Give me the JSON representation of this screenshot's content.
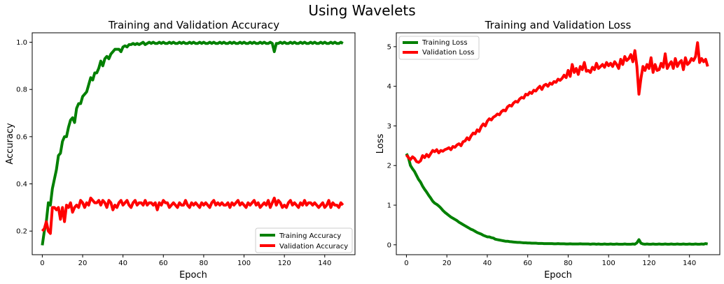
{
  "figure": {
    "suptitle": "Using Wavelets"
  },
  "chart_data": [
    {
      "type": "line",
      "title": "Training and Validation Accuracy",
      "xlabel": "Epoch",
      "ylabel": "Accuracy",
      "xlim": [
        -5,
        155
      ],
      "ylim": [
        0.1,
        1.04
      ],
      "xticks": [
        0,
        20,
        40,
        60,
        80,
        100,
        120,
        140
      ],
      "yticks": [
        0.2,
        0.4,
        0.6,
        0.8,
        1.0
      ],
      "ytick_labels": [
        "0.2",
        "0.4",
        "0.6",
        "0.8",
        "1.0"
      ],
      "grid": false,
      "legend": "lower-right",
      "x": [
        0,
        1,
        2,
        3,
        4,
        5,
        6,
        7,
        8,
        9,
        10,
        11,
        12,
        13,
        14,
        15,
        16,
        17,
        18,
        19,
        20,
        21,
        22,
        23,
        24,
        25,
        26,
        27,
        28,
        29,
        30,
        31,
        32,
        33,
        34,
        35,
        36,
        37,
        38,
        39,
        40,
        41,
        42,
        43,
        44,
        45,
        46,
        47,
        48,
        49,
        50,
        51,
        52,
        53,
        54,
        55,
        56,
        57,
        58,
        59,
        60,
        61,
        62,
        63,
        64,
        65,
        66,
        67,
        68,
        69,
        70,
        71,
        72,
        73,
        74,
        75,
        76,
        77,
        78,
        79,
        80,
        81,
        82,
        83,
        84,
        85,
        86,
        87,
        88,
        89,
        90,
        91,
        92,
        93,
        94,
        95,
        96,
        97,
        98,
        99,
        100,
        101,
        102,
        103,
        104,
        105,
        106,
        107,
        108,
        109,
        110,
        111,
        112,
        113,
        114,
        115,
        116,
        117,
        118,
        119,
        120,
        121,
        122,
        123,
        124,
        125,
        126,
        127,
        128,
        129,
        130,
        131,
        132,
        133,
        134,
        135,
        136,
        137,
        138,
        139,
        140,
        141,
        142,
        143,
        144,
        145,
        146,
        147,
        148,
        149
      ],
      "series": [
        {
          "name": "Training Accuracy",
          "color": "#008000",
          "values": [
            0.14,
            0.2,
            0.24,
            0.32,
            0.31,
            0.38,
            0.42,
            0.46,
            0.52,
            0.53,
            0.58,
            0.6,
            0.6,
            0.64,
            0.67,
            0.68,
            0.66,
            0.72,
            0.74,
            0.74,
            0.77,
            0.78,
            0.79,
            0.82,
            0.85,
            0.84,
            0.87,
            0.87,
            0.89,
            0.92,
            0.9,
            0.93,
            0.94,
            0.93,
            0.95,
            0.96,
            0.97,
            0.97,
            0.97,
            0.96,
            0.98,
            0.985,
            0.98,
            0.99,
            0.99,
            0.995,
            0.99,
            0.995,
            0.99,
            0.995,
            1.0,
            0.99,
            0.995,
            1.0,
            0.995,
            1.0,
            0.995,
            0.995,
            1.0,
            0.995,
            1.0,
            0.995,
            0.995,
            1.0,
            0.995,
            1.0,
            0.995,
            0.995,
            1.0,
            0.995,
            1.0,
            0.995,
            0.995,
            1.0,
            0.995,
            1.0,
            0.995,
            0.995,
            1.0,
            0.995,
            1.0,
            0.995,
            0.995,
            1.0,
            0.995,
            1.0,
            0.995,
            0.995,
            1.0,
            0.995,
            1.0,
            0.995,
            0.995,
            1.0,
            0.995,
            1.0,
            0.995,
            0.995,
            1.0,
            0.995,
            1.0,
            0.995,
            0.995,
            1.0,
            0.995,
            1.0,
            0.995,
            0.995,
            1.0,
            0.995,
            1.0,
            0.995,
            0.995,
            1.0,
            0.995,
            0.96,
            0.995,
            0.995,
            1.0,
            0.995,
            1.0,
            0.995,
            0.995,
            1.0,
            0.995,
            1.0,
            0.995,
            0.995,
            1.0,
            0.995,
            1.0,
            0.995,
            0.995,
            1.0,
            0.995,
            1.0,
            0.995,
            0.995,
            1.0,
            0.995,
            1.0,
            0.995,
            0.995,
            1.0,
            0.995,
            1.0,
            0.995,
            0.995,
            1.0,
            0.995
          ]
        },
        {
          "name": "Validation Accuracy",
          "color": "#ff0000",
          "values": [
            0.2,
            0.21,
            0.24,
            0.2,
            0.19,
            0.3,
            0.3,
            0.29,
            0.3,
            0.25,
            0.3,
            0.24,
            0.31,
            0.3,
            0.32,
            0.28,
            0.3,
            0.31,
            0.3,
            0.33,
            0.32,
            0.3,
            0.32,
            0.31,
            0.34,
            0.33,
            0.32,
            0.32,
            0.33,
            0.31,
            0.33,
            0.32,
            0.3,
            0.33,
            0.32,
            0.29,
            0.31,
            0.3,
            0.32,
            0.33,
            0.31,
            0.32,
            0.33,
            0.31,
            0.3,
            0.32,
            0.33,
            0.31,
            0.32,
            0.32,
            0.31,
            0.33,
            0.31,
            0.32,
            0.32,
            0.31,
            0.32,
            0.29,
            0.32,
            0.31,
            0.33,
            0.32,
            0.32,
            0.3,
            0.31,
            0.32,
            0.31,
            0.3,
            0.32,
            0.31,
            0.31,
            0.33,
            0.31,
            0.3,
            0.32,
            0.31,
            0.32,
            0.31,
            0.3,
            0.32,
            0.31,
            0.32,
            0.31,
            0.3,
            0.32,
            0.33,
            0.31,
            0.32,
            0.31,
            0.32,
            0.31,
            0.31,
            0.32,
            0.3,
            0.32,
            0.31,
            0.32,
            0.33,
            0.31,
            0.32,
            0.31,
            0.3,
            0.32,
            0.31,
            0.32,
            0.33,
            0.31,
            0.32,
            0.3,
            0.31,
            0.32,
            0.31,
            0.33,
            0.3,
            0.32,
            0.34,
            0.31,
            0.33,
            0.32,
            0.3,
            0.31,
            0.3,
            0.32,
            0.33,
            0.31,
            0.32,
            0.31,
            0.3,
            0.32,
            0.31,
            0.33,
            0.31,
            0.32,
            0.32,
            0.31,
            0.32,
            0.31,
            0.3,
            0.31,
            0.32,
            0.3,
            0.31,
            0.33,
            0.3,
            0.32,
            0.31,
            0.31,
            0.3,
            0.32,
            0.31
          ]
        }
      ]
    },
    {
      "type": "line",
      "title": "Training and Validation Loss",
      "xlabel": "Epoch",
      "ylabel": "Loss",
      "xlim": [
        -5,
        155
      ],
      "ylim": [
        -0.25,
        5.35
      ],
      "xticks": [
        0,
        20,
        40,
        60,
        80,
        100,
        120,
        140
      ],
      "yticks": [
        0,
        1,
        2,
        3,
        4,
        5
      ],
      "ytick_labels": [
        "0",
        "1",
        "2",
        "3",
        "4",
        "5"
      ],
      "grid": false,
      "legend": "top-left",
      "x": [
        0,
        1,
        2,
        3,
        4,
        5,
        6,
        7,
        8,
        9,
        10,
        11,
        12,
        13,
        14,
        15,
        16,
        17,
        18,
        19,
        20,
        21,
        22,
        23,
        24,
        25,
        26,
        27,
        28,
        29,
        30,
        31,
        32,
        33,
        34,
        35,
        36,
        37,
        38,
        39,
        40,
        41,
        42,
        43,
        44,
        45,
        46,
        47,
        48,
        49,
        50,
        51,
        52,
        53,
        54,
        55,
        56,
        57,
        58,
        59,
        60,
        61,
        62,
        63,
        64,
        65,
        66,
        67,
        68,
        69,
        70,
        71,
        72,
        73,
        74,
        75,
        76,
        77,
        78,
        79,
        80,
        81,
        82,
        83,
        84,
        85,
        86,
        87,
        88,
        89,
        90,
        91,
        92,
        93,
        94,
        95,
        96,
        97,
        98,
        99,
        100,
        101,
        102,
        103,
        104,
        105,
        106,
        107,
        108,
        109,
        110,
        111,
        112,
        113,
        114,
        115,
        116,
        117,
        118,
        119,
        120,
        121,
        122,
        123,
        124,
        125,
        126,
        127,
        128,
        129,
        130,
        131,
        132,
        133,
        134,
        135,
        136,
        137,
        138,
        139,
        140,
        141,
        142,
        143,
        144,
        145,
        146,
        147,
        148,
        149
      ],
      "series": [
        {
          "name": "Training Loss",
          "color": "#008000",
          "values": [
            2.3,
            2.2,
            2.0,
            1.92,
            1.85,
            1.75,
            1.65,
            1.58,
            1.48,
            1.4,
            1.33,
            1.25,
            1.18,
            1.1,
            1.05,
            1.02,
            0.98,
            0.93,
            0.87,
            0.82,
            0.78,
            0.74,
            0.7,
            0.67,
            0.64,
            0.61,
            0.57,
            0.54,
            0.51,
            0.48,
            0.45,
            0.42,
            0.39,
            0.37,
            0.34,
            0.31,
            0.29,
            0.27,
            0.24,
            0.22,
            0.2,
            0.2,
            0.18,
            0.17,
            0.14,
            0.13,
            0.12,
            0.11,
            0.1,
            0.09,
            0.09,
            0.08,
            0.075,
            0.07,
            0.065,
            0.06,
            0.06,
            0.055,
            0.05,
            0.05,
            0.045,
            0.045,
            0.04,
            0.04,
            0.04,
            0.035,
            0.035,
            0.035,
            0.03,
            0.03,
            0.03,
            0.03,
            0.03,
            0.025,
            0.025,
            0.03,
            0.025,
            0.025,
            0.025,
            0.02,
            0.02,
            0.025,
            0.02,
            0.02,
            0.02,
            0.02,
            0.025,
            0.02,
            0.02,
            0.02,
            0.02,
            0.015,
            0.02,
            0.02,
            0.015,
            0.02,
            0.015,
            0.015,
            0.02,
            0.015,
            0.015,
            0.02,
            0.015,
            0.015,
            0.02,
            0.015,
            0.015,
            0.015,
            0.02,
            0.015,
            0.015,
            0.015,
            0.02,
            0.015,
            0.05,
            0.13,
            0.04,
            0.02,
            0.015,
            0.02,
            0.015,
            0.015,
            0.02,
            0.015,
            0.015,
            0.02,
            0.015,
            0.015,
            0.02,
            0.015,
            0.015,
            0.02,
            0.015,
            0.015,
            0.02,
            0.015,
            0.015,
            0.02,
            0.015,
            0.015,
            0.02,
            0.015,
            0.015,
            0.02,
            0.015,
            0.015,
            0.02,
            0.015,
            0.03,
            0.02
          ]
        },
        {
          "name": "Validation Loss",
          "color": "#ff0000",
          "values": [
            2.27,
            2.2,
            2.15,
            2.22,
            2.18,
            2.1,
            2.08,
            2.12,
            2.25,
            2.2,
            2.28,
            2.22,
            2.3,
            2.38,
            2.35,
            2.4,
            2.32,
            2.38,
            2.36,
            2.4,
            2.42,
            2.45,
            2.4,
            2.48,
            2.46,
            2.52,
            2.55,
            2.5,
            2.6,
            2.62,
            2.7,
            2.65,
            2.75,
            2.82,
            2.8,
            2.9,
            2.86,
            2.98,
            3.05,
            3.0,
            3.12,
            3.18,
            3.15,
            3.22,
            3.25,
            3.3,
            3.28,
            3.36,
            3.4,
            3.38,
            3.48,
            3.52,
            3.5,
            3.58,
            3.62,
            3.6,
            3.68,
            3.72,
            3.7,
            3.8,
            3.78,
            3.85,
            3.82,
            3.9,
            3.88,
            3.95,
            4.0,
            3.92,
            4.02,
            4.05,
            4.0,
            4.08,
            4.05,
            4.12,
            4.1,
            4.18,
            4.15,
            4.2,
            4.28,
            4.22,
            4.4,
            4.25,
            4.55,
            4.35,
            4.45,
            4.3,
            4.5,
            4.42,
            4.6,
            4.38,
            4.4,
            4.35,
            4.48,
            4.42,
            4.58,
            4.45,
            4.5,
            4.55,
            4.48,
            4.6,
            4.52,
            4.58,
            4.5,
            4.62,
            4.55,
            4.45,
            4.68,
            4.55,
            4.75,
            4.65,
            4.7,
            4.8,
            4.62,
            4.9,
            4.5,
            3.8,
            4.2,
            4.5,
            4.4,
            4.55,
            4.45,
            4.72,
            4.35,
            4.55,
            4.4,
            4.42,
            4.58,
            4.48,
            4.82,
            4.45,
            4.55,
            4.62,
            4.45,
            4.7,
            4.5,
            4.6,
            4.65,
            4.42,
            4.72,
            4.55,
            4.6,
            4.7,
            4.65,
            4.75,
            5.1,
            4.6,
            4.7,
            4.62,
            4.68,
            4.5
          ]
        }
      ]
    }
  ]
}
